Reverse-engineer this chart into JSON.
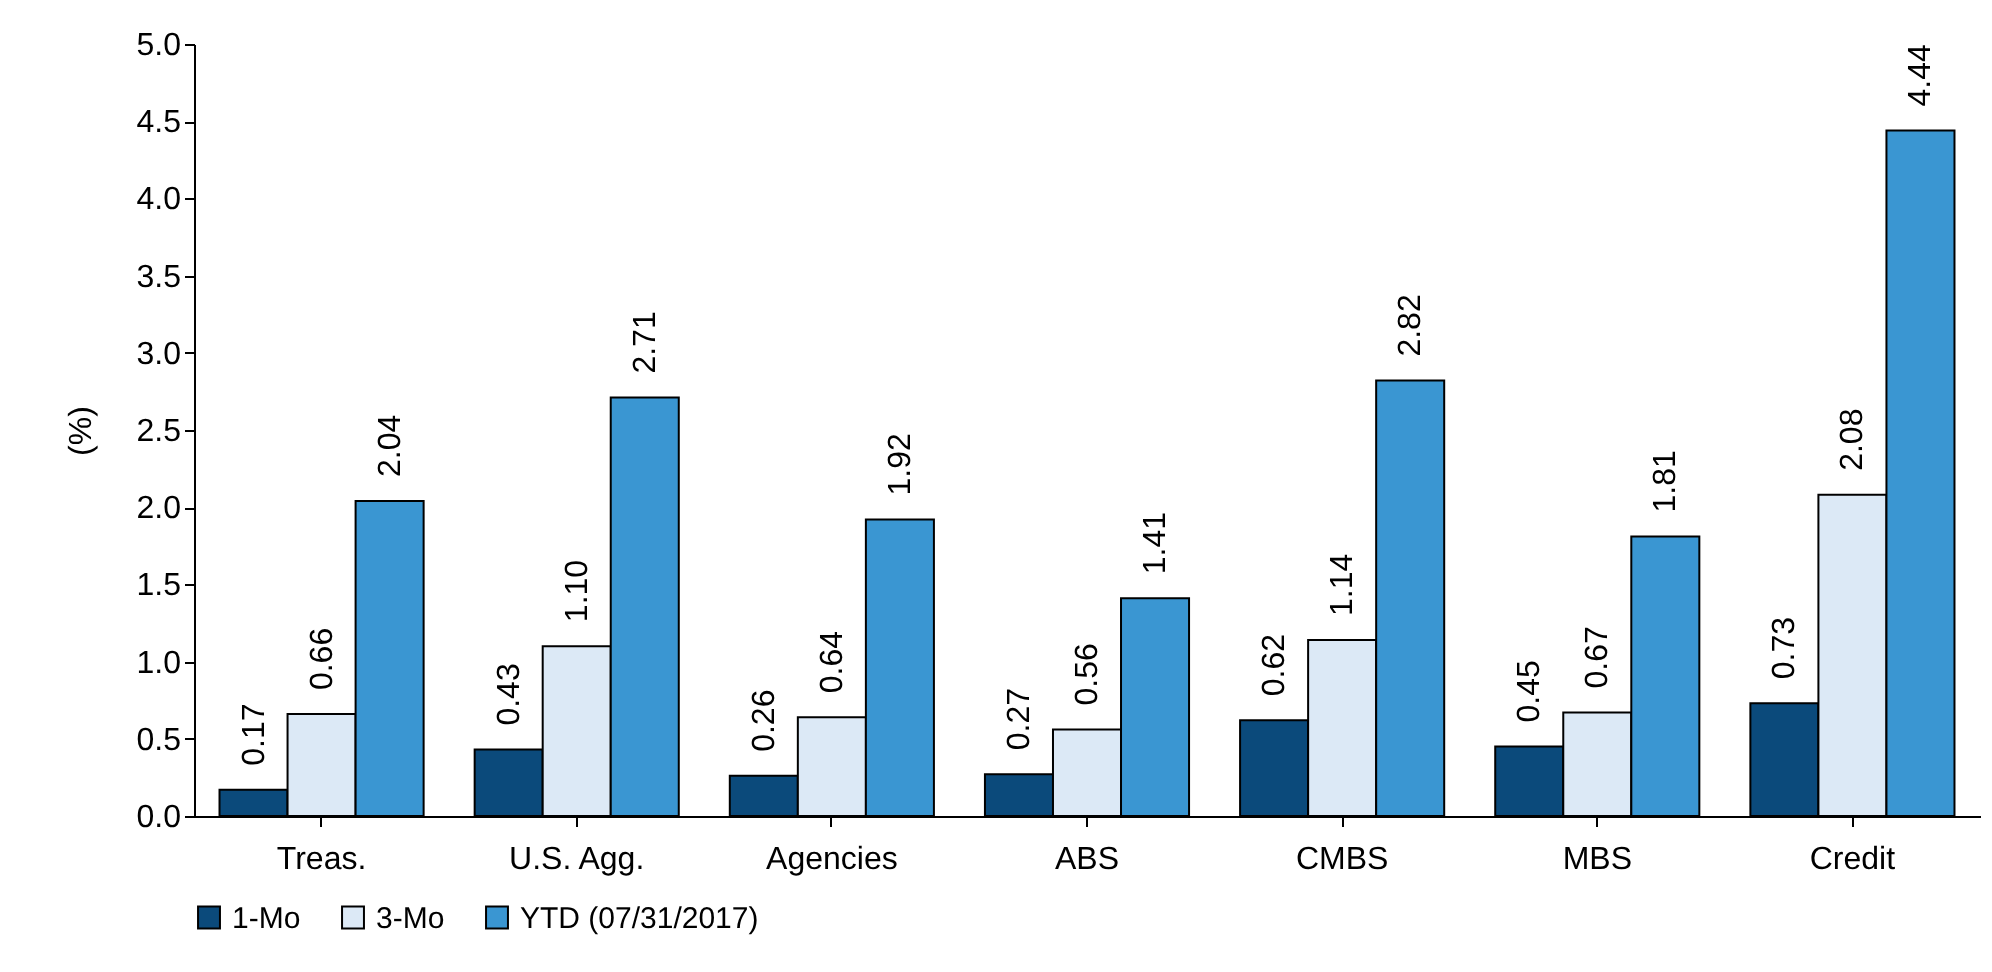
{
  "chart_data": {
    "type": "bar",
    "ylabel": "(%)",
    "categories": [
      "Treas.",
      "U.S. Agg.",
      "Agencies",
      "ABS",
      "CMBS",
      "MBS",
      "Credit"
    ],
    "series": [
      {
        "name": "1-Mo",
        "color": "#0b4a7b",
        "values": [
          0.17,
          0.43,
          0.26,
          0.27,
          0.62,
          0.45,
          0.73
        ],
        "value_labels": [
          "0.17",
          "0.43",
          "0.26",
          "0.27",
          "0.62",
          "0.45",
          "0.73"
        ]
      },
      {
        "name": "3-Mo",
        "color": "#dce9f6",
        "values": [
          0.66,
          1.1,
          0.64,
          0.56,
          1.14,
          0.67,
          2.08
        ],
        "value_labels": [
          "0.66",
          "1.10",
          "0.64",
          "0.56",
          "1.14",
          "0.67",
          "2.08"
        ]
      },
      {
        "name": "YTD (07/31/2017)",
        "color": "#3a96d2",
        "values": [
          2.04,
          2.71,
          1.92,
          1.41,
          2.82,
          1.81,
          4.44
        ],
        "value_labels": [
          "2.04",
          "2.71",
          "1.92",
          "1.41",
          "2.82",
          "1.81",
          "4.44"
        ]
      }
    ],
    "ylim": [
      0,
      5
    ],
    "yticks": [
      {
        "value": 0,
        "label": "0.0"
      },
      0.5,
      {
        "value": 1,
        "label": "1.0"
      },
      1.5,
      {
        "value": 2,
        "label": "2.0"
      },
      2.5,
      {
        "value": 3,
        "label": "3.0"
      },
      3.5,
      {
        "value": 4,
        "label": "4.0"
      },
      4.5,
      {
        "value": 5,
        "label": "5.0"
      }
    ],
    "grid": false,
    "legend": "bottom"
  }
}
